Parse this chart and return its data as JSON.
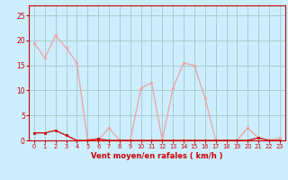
{
  "x": [
    0,
    1,
    2,
    3,
    4,
    5,
    6,
    7,
    8,
    9,
    10,
    11,
    12,
    13,
    14,
    15,
    16,
    17,
    18,
    19,
    20,
    21,
    22,
    23
  ],
  "y_dark": [
    1.5,
    1.5,
    2.0,
    1.0,
    0.0,
    0.0,
    0.3,
    0.0,
    0.0,
    0.0,
    0.0,
    0.0,
    0.0,
    0.0,
    0.0,
    0.0,
    0.0,
    0.0,
    0.0,
    0.0,
    0.0,
    0.5,
    0.0,
    0.0
  ],
  "y_light": [
    19.5,
    16.5,
    21.0,
    18.5,
    15.5,
    0.2,
    0.0,
    2.5,
    0.0,
    0.0,
    10.5,
    11.5,
    0.0,
    10.5,
    15.5,
    15.0,
    8.5,
    0.0,
    0.0,
    0.0,
    2.5,
    0.5,
    0.0,
    0.5
  ],
  "color_dark": "#cc0000",
  "color_light": "#f0a0a0",
  "bg_color": "#cceeff",
  "grid_color": "#aacccc",
  "xlabel": "Vent moyen/en rafales ( km/h )",
  "xlim": [
    -0.5,
    23.5
  ],
  "ylim": [
    0,
    27
  ],
  "yticks": [
    0,
    5,
    10,
    15,
    20,
    25
  ],
  "xticks": [
    0,
    1,
    2,
    3,
    4,
    5,
    6,
    7,
    8,
    9,
    10,
    11,
    12,
    13,
    14,
    15,
    16,
    17,
    18,
    19,
    20,
    21,
    22,
    23
  ]
}
